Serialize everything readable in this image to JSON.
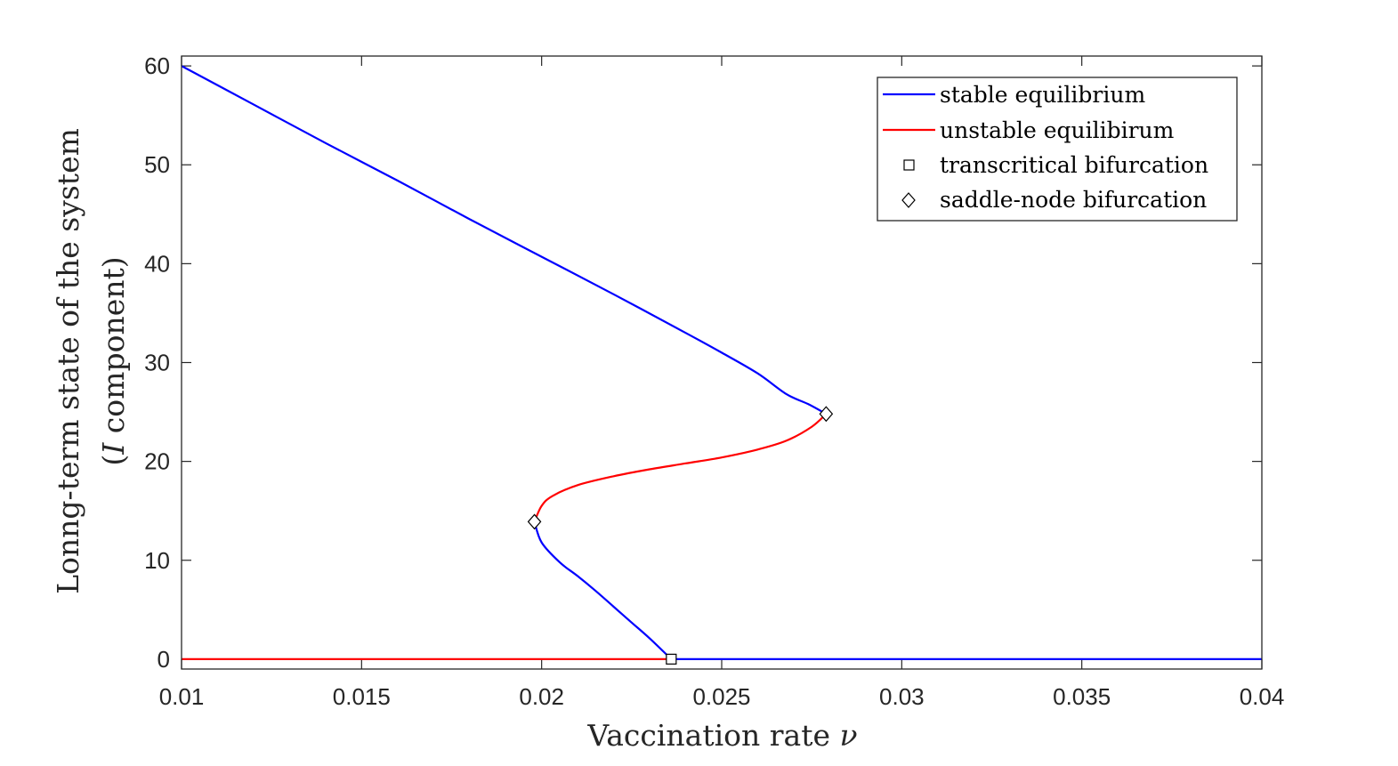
{
  "chart_data": {
    "type": "line",
    "xlabel": "Vaccination rate",
    "xlabel_symbol": "ν",
    "ylabel_line1": "Lonng-term state of the system",
    "ylabel_line2_open": "(",
    "ylabel_line2_symbol": "I",
    "ylabel_line2_rest": " component)",
    "xlim": [
      0.01,
      0.04
    ],
    "ylim": [
      -1,
      61
    ],
    "xticks": [
      0.01,
      0.015,
      0.02,
      0.025,
      0.03,
      0.035,
      0.04
    ],
    "xtick_labels": [
      "0.01",
      "0.015",
      "0.02",
      "0.025",
      "0.03",
      "0.035",
      "0.04"
    ],
    "yticks": [
      0,
      10,
      20,
      30,
      40,
      50,
      60
    ],
    "ytick_labels": [
      "0",
      "10",
      "20",
      "30",
      "40",
      "50",
      "60"
    ],
    "grid": false,
    "legend_position": "top-right",
    "legend": [
      {
        "label": "stable equilibrium",
        "kind": "line",
        "color": "#0000ff"
      },
      {
        "label": "unstable equilibirum",
        "kind": "line",
        "color": "#ff0000"
      },
      {
        "label": "transcritical bifurcation",
        "kind": "square"
      },
      {
        "label": "saddle-node bifurcation",
        "kind": "diamond"
      }
    ],
    "series": [
      {
        "stability": "stable",
        "color": "#0000ff",
        "x": [
          0.01,
          0.012,
          0.014,
          0.016,
          0.018,
          0.02,
          0.022,
          0.024,
          0.025,
          0.026,
          0.0268,
          0.0274,
          0.0279
        ],
        "y": [
          60.0,
          56.1,
          52.2,
          48.4,
          44.5,
          40.7,
          36.9,
          33.0,
          31.0,
          28.9,
          26.8,
          25.8,
          24.8
        ]
      },
      {
        "stability": "unstable",
        "color": "#ff0000",
        "x": [
          0.0279,
          0.0275,
          0.0268,
          0.026,
          0.025,
          0.024,
          0.023,
          0.022,
          0.021,
          0.0203,
          0.02,
          0.0198
        ],
        "y": [
          24.8,
          23.5,
          22.1,
          21.2,
          20.4,
          19.8,
          19.2,
          18.5,
          17.6,
          16.5,
          15.5,
          13.9
        ]
      },
      {
        "stability": "stable",
        "color": "#0000ff",
        "x": [
          0.0198,
          0.02,
          0.0205,
          0.021,
          0.0215,
          0.022,
          0.0225,
          0.023,
          0.0236
        ],
        "y": [
          13.9,
          11.8,
          9.8,
          8.4,
          6.9,
          5.3,
          3.7,
          2.1,
          0.0
        ]
      },
      {
        "stability": "unstable",
        "color": "#ff0000",
        "x": [
          0.01,
          0.0236
        ],
        "y": [
          0.0,
          0.0
        ]
      },
      {
        "stability": "stable",
        "color": "#0000ff",
        "x": [
          0.0236,
          0.04
        ],
        "y": [
          0.0,
          0.0
        ]
      }
    ],
    "markers": [
      {
        "type": "transcritical",
        "shape": "square",
        "x": 0.0236,
        "y": 0.0
      },
      {
        "type": "saddle-node",
        "shape": "diamond",
        "x": 0.0198,
        "y": 13.9
      },
      {
        "type": "saddle-node",
        "shape": "diamond",
        "x": 0.0279,
        "y": 24.8
      }
    ]
  }
}
